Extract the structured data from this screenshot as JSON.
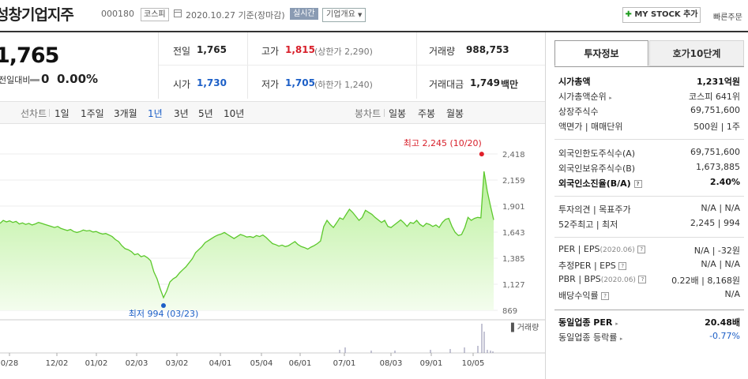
{
  "header": {
    "stock_name": "성창기업지주",
    "stock_code": "000180",
    "market": "코스피",
    "date_text": "2020.10.27  기준(장마감)",
    "realtime_label": "실시간",
    "company_info_label": "기업개요",
    "mystock_label": "MY STOCK 추가",
    "quick_order_label": "빠른주문"
  },
  "price": {
    "current": "1,765",
    "change_label": "전일대비",
    "change_value": "0",
    "change_pct": "0.00%"
  },
  "details": {
    "prev_close": {
      "label": "전일",
      "value": "1,765"
    },
    "high": {
      "label": "고가",
      "value": "1,815",
      "sub": "(상한가 2,290)"
    },
    "volume": {
      "label": "거래량",
      "value": "988,753"
    },
    "open": {
      "label": "시가",
      "value": "1,730"
    },
    "low": {
      "label": "저가",
      "value": "1,705",
      "sub": "(하한가 1,240)"
    },
    "amount": {
      "label": "거래대금",
      "value": "1,749",
      "unit": "백만"
    }
  },
  "period_bar": {
    "line_label": "선차트",
    "line_periods": [
      "1일",
      "1주일",
      "3개월",
      "1년",
      "3년",
      "5년",
      "10년"
    ],
    "active_period": "1년",
    "candle_label": "봉차트",
    "candle_periods": [
      "일봉",
      "주봉",
      "월봉"
    ]
  },
  "chart_data": {
    "type": "area",
    "y_ticks": [
      "2,418",
      "2,159",
      "1,901",
      "1,643",
      "1,385",
      "1,127",
      "869"
    ],
    "x_ticks": [
      "0/28",
      "12/02",
      "01/02",
      "02/03",
      "03/02",
      "04/01",
      "05/04",
      "06/01",
      "07/01",
      "08/03",
      "09/01",
      "10/05"
    ],
    "ylim": [
      869,
      2418
    ],
    "series": [
      {
        "values": [
          1730,
          1760,
          1745,
          1755,
          1740,
          1750,
          1725,
          1735,
          1720,
          1730,
          1715,
          1725,
          1740,
          1730,
          1720,
          1710,
          1700,
          1690,
          1700,
          1680,
          1670,
          1660,
          1670,
          1650,
          1640,
          1650,
          1665,
          1655,
          1660,
          1645,
          1650,
          1635,
          1625,
          1630,
          1615,
          1600,
          1570,
          1550,
          1510,
          1480,
          1470,
          1450,
          1420,
          1430,
          1400,
          1410,
          1390,
          1360,
          1250,
          1180,
          1080,
          994,
          1060,
          1150,
          1180,
          1200,
          1240,
          1270,
          1300,
          1340,
          1380,
          1440,
          1470,
          1500,
          1540,
          1560,
          1580,
          1600,
          1615,
          1625,
          1640,
          1620,
          1600,
          1580,
          1600,
          1620,
          1610,
          1595,
          1600,
          1590,
          1610,
          1600,
          1615,
          1590,
          1560,
          1530,
          1520,
          1505,
          1515,
          1500,
          1510,
          1530,
          1550,
          1520,
          1500,
          1490,
          1475,
          1495,
          1510,
          1530,
          1555,
          1700,
          1760,
          1720,
          1690,
          1735,
          1785,
          1770,
          1820,
          1870,
          1840,
          1800,
          1760,
          1790,
          1860,
          1840,
          1820,
          1790,
          1765,
          1740,
          1760,
          1700,
          1690,
          1715,
          1740,
          1765,
          1735,
          1700,
          1740,
          1730,
          1760,
          1720,
          1700,
          1730,
          1720,
          1700,
          1715,
          1690,
          1740,
          1770,
          1780,
          1700,
          1640,
          1610,
          1620,
          1690,
          1790,
          1760,
          1780,
          1790,
          1785,
          2245,
          2050,
          1905,
          1765
        ]
      }
    ],
    "max_label": "최고 2,245 (10/20)",
    "min_label": "최저 994 (03/23)",
    "volume_label": "거래량"
  },
  "right_panel": {
    "tabs": [
      "투자정보",
      "호가10단계"
    ],
    "market_cap": {
      "label": "시가총액",
      "value": "1,231억원"
    },
    "market_cap_rank": {
      "label": "시가총액순위",
      "value": "코스피 641위"
    },
    "shares": {
      "label": "상장주식수",
      "value": "69,751,600"
    },
    "face_value": {
      "label": "액면가 | 매매단위",
      "value": "500원 | 1주"
    },
    "foreign_limit": {
      "label": "외국인한도주식수(A)",
      "value": "69,751,600"
    },
    "foreign_hold": {
      "label": "외국인보유주식수(B)",
      "value": "1,673,885"
    },
    "foreign_ratio": {
      "label": "외국인소진율(B/A)",
      "value": "2.40%"
    },
    "opinion": {
      "label": "투자의견 | 목표주가",
      "value": "N/A | N/A"
    },
    "week52": {
      "label": "52주최고 | 최저",
      "value": "2,245 | 994"
    },
    "per_eps": {
      "label": "PER | EPS",
      "date": "(2020.06)",
      "value": "N/A | -32원"
    },
    "est_per_eps": {
      "label": "추정PER | EPS",
      "value": "N/A | N/A"
    },
    "pbr_bps": {
      "label": "PBR | BPS",
      "date": "(2020.06)",
      "value": "0.22배 | 8,168원"
    },
    "dividend": {
      "label": "배당수익률",
      "value": "N/A"
    },
    "industry_per": {
      "label": "동일업종 PER",
      "value": "20.48배"
    },
    "industry_change": {
      "label": "동일업종 등락률",
      "value": "-0.77%"
    }
  }
}
